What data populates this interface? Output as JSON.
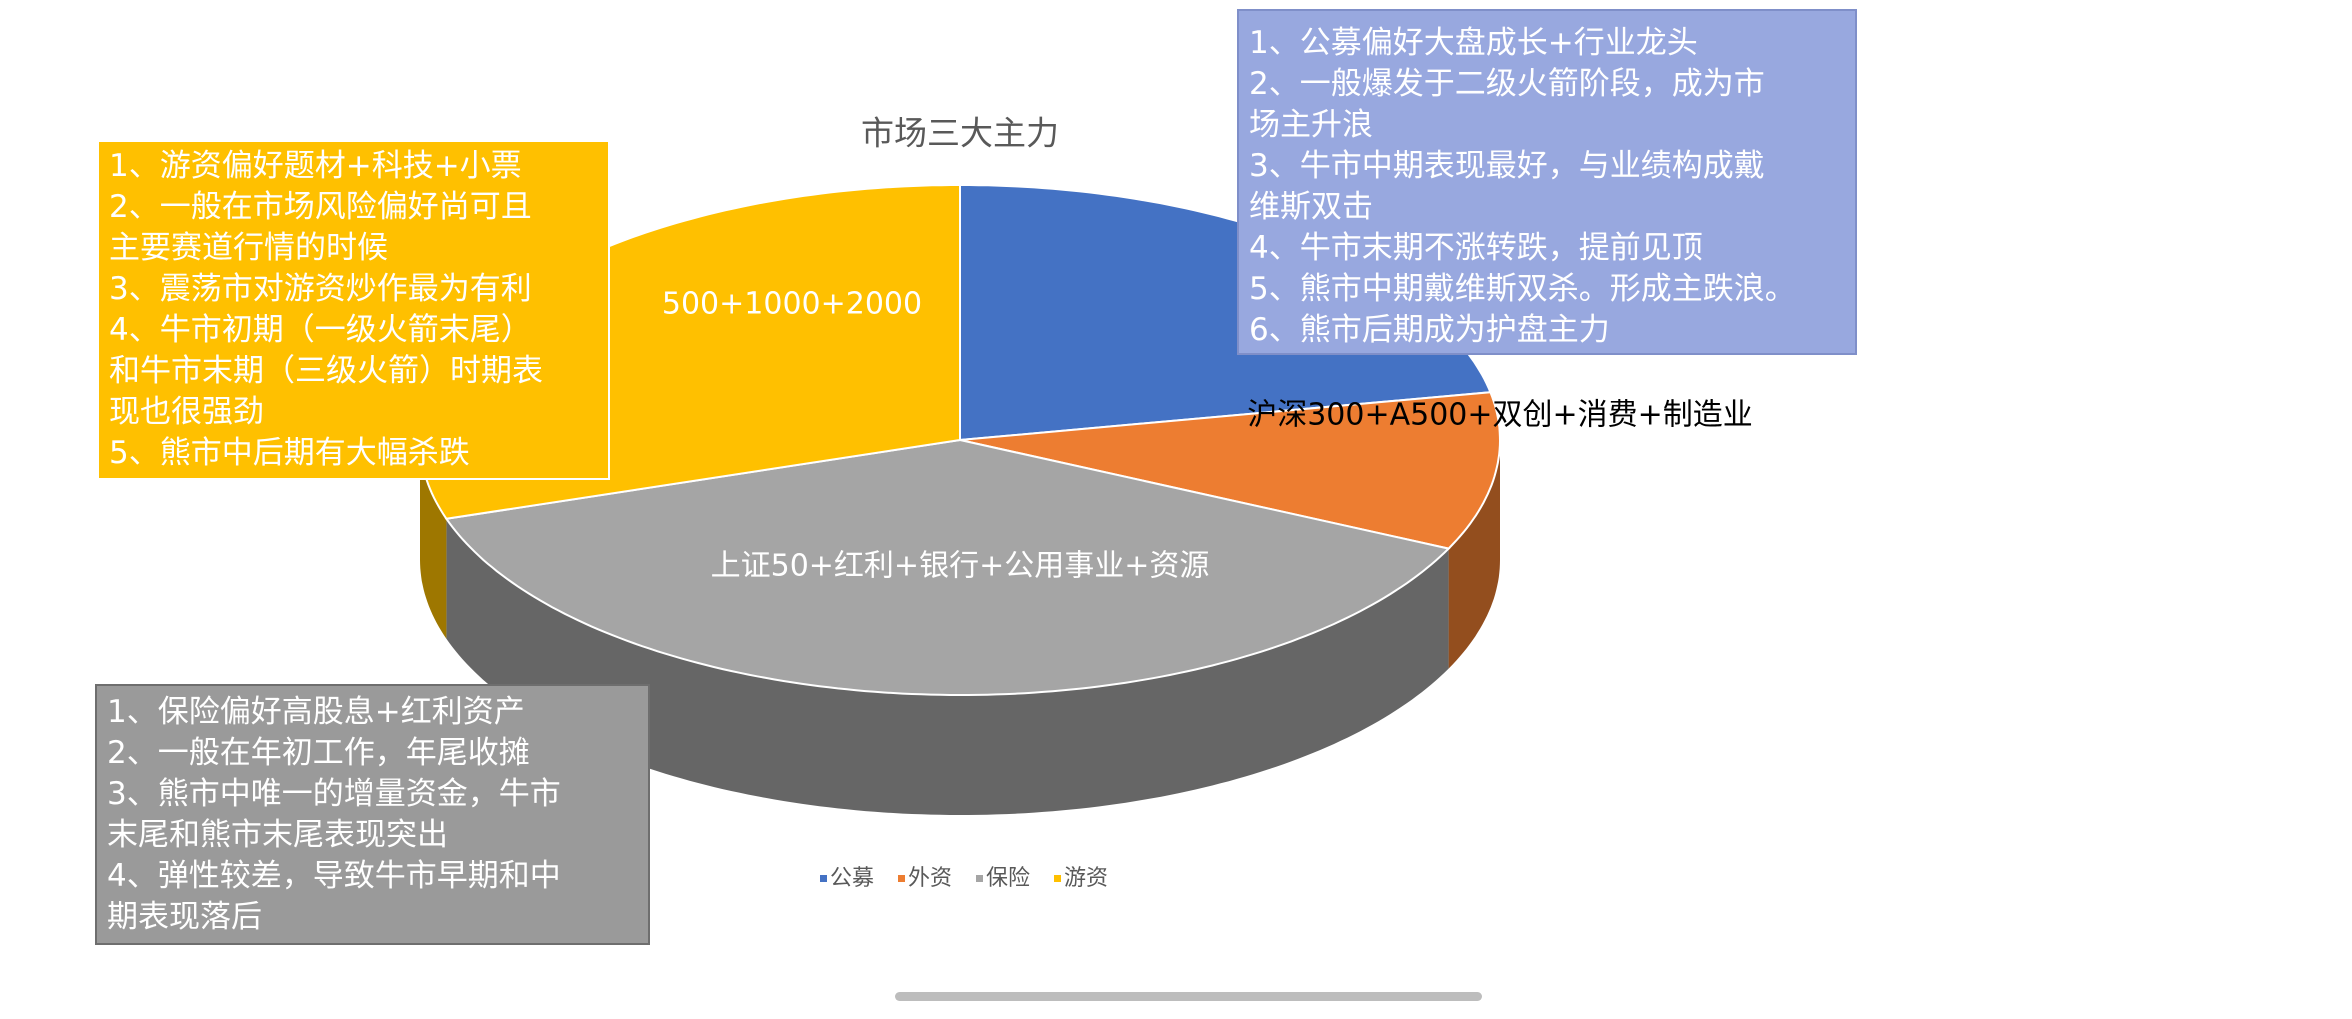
{
  "chart_data": {
    "type": "pie",
    "title": "市场三大主力",
    "categories": [
      "公募",
      "外资",
      "保险",
      "游资"
    ],
    "values": [
      22,
      10,
      38,
      30
    ],
    "colors": [
      "#4472c4",
      "#ed7d31",
      "#a5a5a5",
      "#ffc000"
    ],
    "slice_labels": [
      null,
      "沪深300+A500+双创+消费+制造业",
      "上证50+红利+银行+公用事业+资源",
      "500+1000+2000"
    ],
    "legend": "bottom",
    "annotations": [
      {
        "lines": [
          "1、游资偏好题材+科技+小票",
          "2、一般在市场风险偏好尚可且",
          "主要赛道行情的时候",
          "3、震荡市对游资炒作最为有利",
          "4、牛市初期（一级火箭末尾）",
          "和牛市末期（三级火箭）时期表",
          "现也很强劲",
          "5、熊市中后期有大幅杀跌"
        ]
      },
      {
        "lines": [
          "1、公募偏好大盘成长+行业龙头",
          "2、一般爆发于二级火箭阶段，成为市",
          "场主升浪",
          "3、牛市中期表现最好，与业绩构成戴",
          "维斯双击",
          "4、牛市末期不涨转跌，提前见顶",
          "5、熊市中期戴维斯双杀。形成主跌浪。",
          "6、熊市后期成为护盘主力"
        ]
      },
      {
        "lines": [
          "1、保险偏好高股息+红利资产",
          "2、一般在年初工作，年尾收摊",
          "3、熊市中唯一的增量资金，牛市",
          "末尾和熊市末尾表现突出",
          "4、弹性较差，导致牛市早期和中",
          "期表现落后"
        ]
      }
    ]
  }
}
